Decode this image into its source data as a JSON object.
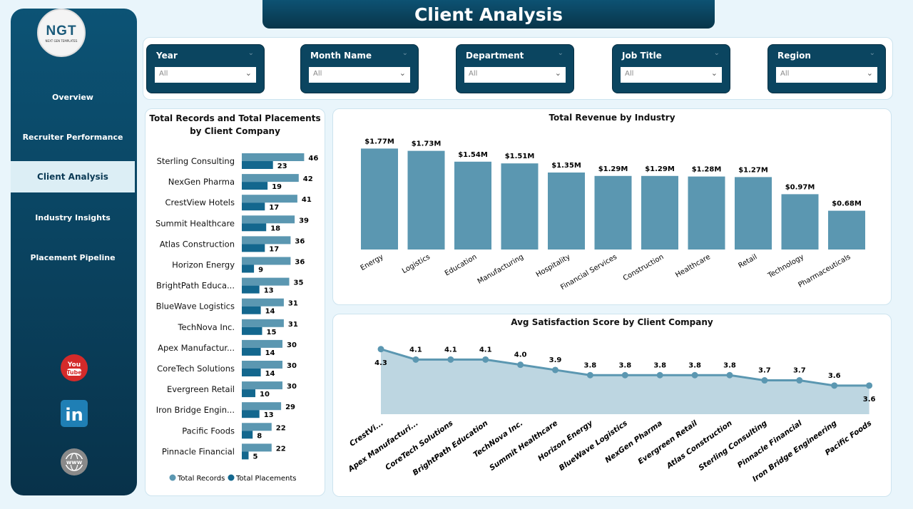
{
  "header": {
    "title": "Client Analysis"
  },
  "logo": {
    "text": "NGT",
    "subtitle": "NEXT GEN TEMPLATES"
  },
  "sidebar": {
    "items": [
      {
        "label": "Overview"
      },
      {
        "label": "Recruiter Performance"
      },
      {
        "label": "Client Analysis",
        "active": true
      },
      {
        "label": "Industry Insights"
      },
      {
        "label": "Placement Pipeline"
      }
    ],
    "social": [
      {
        "icon": "youtube-icon",
        "label": "You Tube"
      },
      {
        "icon": "linkedin-icon",
        "label": "in"
      },
      {
        "icon": "website-icon",
        "label": "www"
      }
    ]
  },
  "filters": [
    {
      "label": "Year",
      "value": "All"
    },
    {
      "label": "Month Name",
      "value": "All"
    },
    {
      "label": "Department",
      "value": "All"
    },
    {
      "label": "Job Title",
      "value": "All"
    },
    {
      "label": "Region",
      "value": "All"
    }
  ],
  "colors": {
    "records": "#5b97b1",
    "placements": "#13678e",
    "revenue": "#5b97b1",
    "line": "#5b97b1",
    "area": "#bdd6e1",
    "navy": "#0b4560"
  },
  "chart_data": [
    {
      "type": "bar",
      "orientation": "horizontal",
      "title": "Total Records and Total Placements by Client Company",
      "categories": [
        "Sterling Consulting",
        "NexGen Pharma",
        "CrestView Hotels",
        "Summit Healthcare",
        "Atlas Construction",
        "Horizon Energy",
        "BrightPath Educa...",
        "BlueWave Logistics",
        "TechNova Inc.",
        "Apex Manufactur...",
        "CoreTech Solutions",
        "Evergreen Retail",
        "Iron Bridge Engin...",
        "Pacific Foods",
        "Pinnacle Financial"
      ],
      "series": [
        {
          "name": "Total Records",
          "values": [
            46,
            42,
            41,
            39,
            36,
            36,
            35,
            31,
            31,
            30,
            30,
            30,
            29,
            22,
            22
          ]
        },
        {
          "name": "Total Placements",
          "values": [
            23,
            19,
            17,
            18,
            17,
            9,
            13,
            14,
            15,
            14,
            14,
            10,
            13,
            8,
            5
          ]
        }
      ],
      "legend": "bottom"
    },
    {
      "type": "bar",
      "title": "Total Revenue by Industry",
      "categories": [
        "Energy",
        "Logistics",
        "Education",
        "Manufacturing",
        "Hospitality",
        "Financial Services",
        "Construction",
        "Healthcare",
        "Retail",
        "Technology",
        "Pharmaceuticals"
      ],
      "values": [
        1.77,
        1.73,
        1.54,
        1.51,
        1.35,
        1.29,
        1.29,
        1.28,
        1.27,
        0.97,
        0.68
      ],
      "labels": [
        "$1.77M",
        "$1.73M",
        "$1.54M",
        "$1.51M",
        "$1.35M",
        "$1.29M",
        "$1.29M",
        "$1.28M",
        "$1.27M",
        "$0.97M",
        "$0.68M"
      ],
      "unit": "M"
    },
    {
      "type": "area",
      "title": "Avg Satisfaction Score by Client Company",
      "categories": [
        "CrestVi...",
        "Apex Manufacturi...",
        "CoreTech Solutions",
        "BrightPath Education",
        "TechNova Inc.",
        "Summit Healthcare",
        "Horizon Energy",
        "BlueWave Logistics",
        "NexGen Pharma",
        "Evergreen Retail",
        "Atlas Construction",
        "Sterling Consulting",
        "Pinnacle Financial",
        "Iron Bridge Engineering",
        "Pacific Foods"
      ],
      "values": [
        4.3,
        4.1,
        4.1,
        4.1,
        4.0,
        3.9,
        3.8,
        3.8,
        3.8,
        3.8,
        3.8,
        3.7,
        3.7,
        3.6,
        3.6
      ],
      "labels": [
        "4.3",
        "4.1",
        "4.1",
        "4.1",
        "4.0",
        "3.9",
        "3.8",
        "3.8",
        "3.8",
        "3.8",
        "3.8",
        "3.7",
        "3.7",
        "3.6",
        "3.6"
      ]
    }
  ]
}
